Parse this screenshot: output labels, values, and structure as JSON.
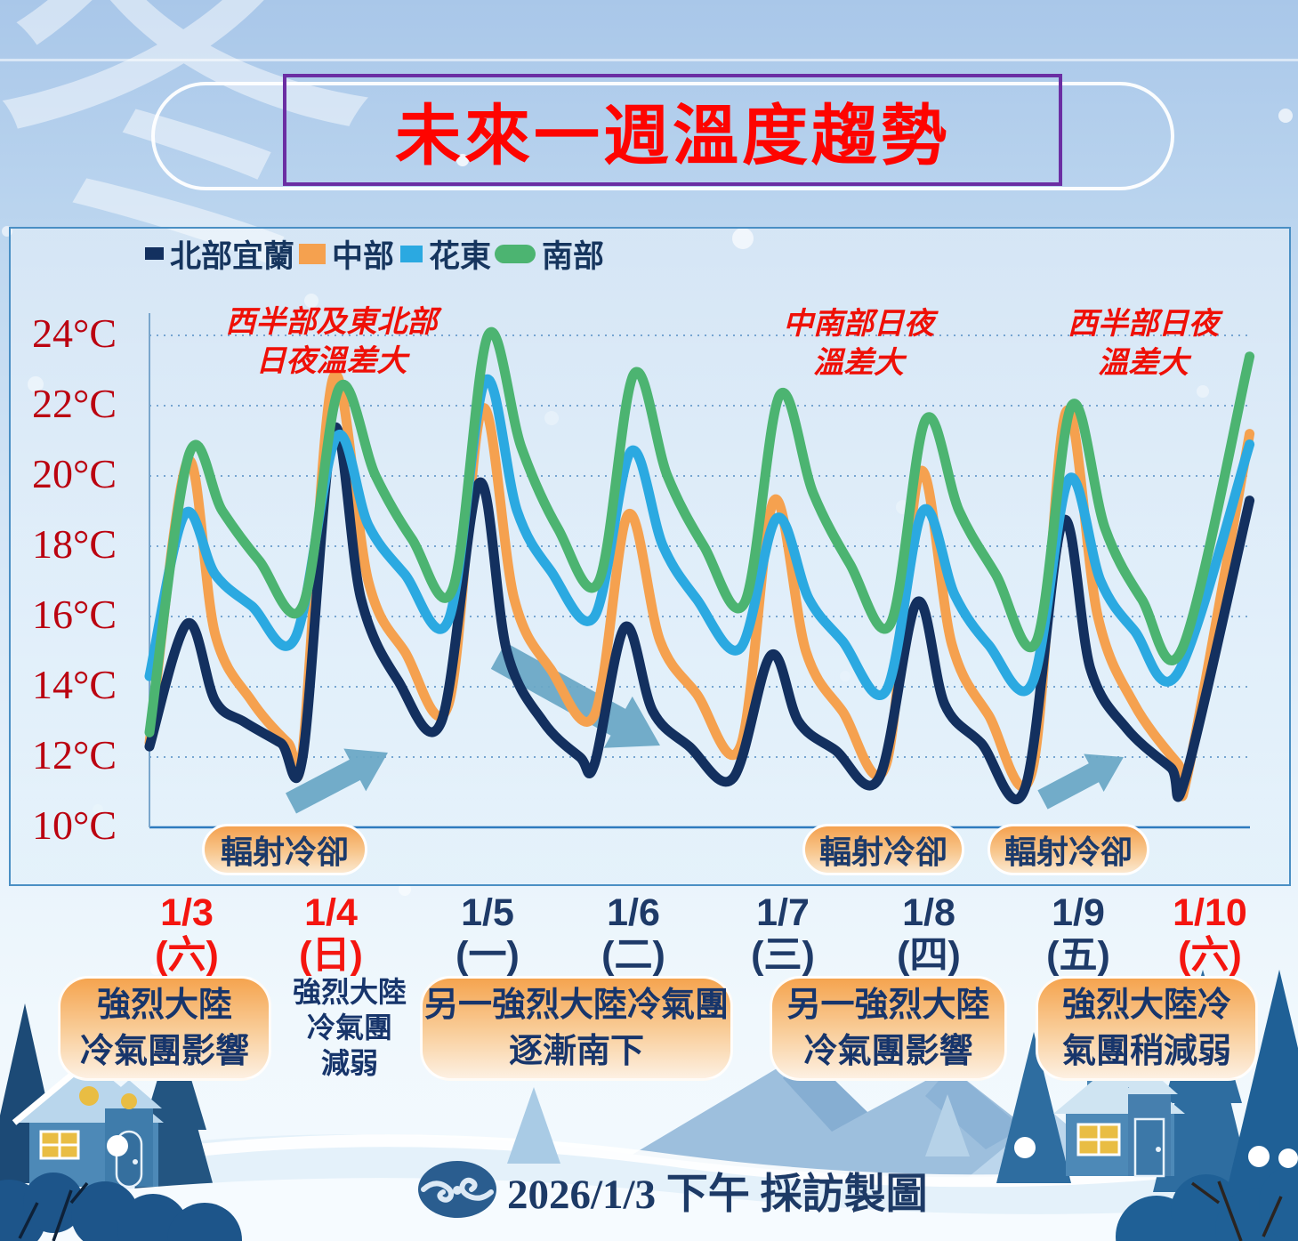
{
  "title": {
    "text": "未來一週溫度趨勢"
  },
  "watermark": "冬",
  "legend": [
    {
      "label": "北部宜蘭",
      "color": "#13305f",
      "shape": "rect"
    },
    {
      "label": "中部",
      "color": "#f5a14f",
      "shape": "rect"
    },
    {
      "label": "花東",
      "color": "#2ba9e1",
      "shape": "rect"
    },
    {
      "label": "南部",
      "color": "#4cb471",
      "shape": "pill"
    }
  ],
  "chart_data": {
    "type": "line",
    "title": "未來一週溫度趨勢",
    "ylabel": "°C",
    "ylim": [
      10,
      24
    ],
    "yticks": [
      "24°C",
      "22°C",
      "20°C",
      "18°C",
      "16°C",
      "14°C",
      "12°C",
      "10°C"
    ],
    "x_days": [
      "1/3",
      "1/4",
      "1/5",
      "1/6",
      "1/7",
      "1/8",
      "1/9",
      "1/10"
    ],
    "grid": "dotted horizontal gridlines every 2°C",
    "legend_position": "top-left",
    "units": {
      "t": "days since 1/3 (daily peak ≈ d+0.27, nightly low ≈ d+1.05)",
      "value": "°C (estimated)"
    },
    "series": [
      {
        "name": "北部宜蘭",
        "color": "#13305f",
        "points": [
          [
            0.0,
            12.3
          ],
          [
            0.26,
            15.8
          ],
          [
            0.45,
            13.6
          ],
          [
            0.65,
            13.0
          ],
          [
            0.9,
            12.4
          ],
          [
            1.05,
            12.0
          ],
          [
            1.26,
            21.3
          ],
          [
            1.45,
            16.5
          ],
          [
            1.7,
            14.2
          ],
          [
            2.0,
            13.0
          ],
          [
            2.26,
            19.8
          ],
          [
            2.45,
            15.0
          ],
          [
            2.7,
            13.0
          ],
          [
            2.95,
            12.0
          ],
          [
            3.05,
            11.8
          ],
          [
            3.26,
            15.7
          ],
          [
            3.45,
            13.3
          ],
          [
            3.7,
            12.3
          ],
          [
            4.0,
            11.4
          ],
          [
            4.26,
            14.9
          ],
          [
            4.45,
            13.0
          ],
          [
            4.7,
            12.2
          ],
          [
            5.0,
            11.4
          ],
          [
            5.26,
            16.4
          ],
          [
            5.45,
            13.5
          ],
          [
            5.7,
            12.4
          ],
          [
            6.0,
            11.1
          ],
          [
            6.26,
            18.7
          ],
          [
            6.45,
            14.5
          ],
          [
            6.7,
            12.8
          ],
          [
            7.0,
            11.7
          ],
          [
            7.1,
            11.4
          ],
          [
            7.54,
            19.3
          ]
        ]
      },
      {
        "name": "中部",
        "color": "#f5a14f",
        "points": [
          [
            0.0,
            12.4
          ],
          [
            0.26,
            20.4
          ],
          [
            0.45,
            15.5
          ],
          [
            0.7,
            13.6
          ],
          [
            0.95,
            12.4
          ],
          [
            1.05,
            12.2
          ],
          [
            1.26,
            22.8
          ],
          [
            1.5,
            17.0
          ],
          [
            1.75,
            15.0
          ],
          [
            2.05,
            13.5
          ],
          [
            2.28,
            21.9
          ],
          [
            2.5,
            16.5
          ],
          [
            2.75,
            14.5
          ],
          [
            3.05,
            13.2
          ],
          [
            3.28,
            18.9
          ],
          [
            3.5,
            15.3
          ],
          [
            3.75,
            13.8
          ],
          [
            4.05,
            12.3
          ],
          [
            4.28,
            19.3
          ],
          [
            4.5,
            15.0
          ],
          [
            4.75,
            13.3
          ],
          [
            5.05,
            11.8
          ],
          [
            5.28,
            20.1
          ],
          [
            5.5,
            15.2
          ],
          [
            5.75,
            13.2
          ],
          [
            6.05,
            11.6
          ],
          [
            6.28,
            21.8
          ],
          [
            6.5,
            16.0
          ],
          [
            6.75,
            13.5
          ],
          [
            7.05,
            11.8
          ],
          [
            7.12,
            11.6
          ],
          [
            7.54,
            21.2
          ]
        ]
      },
      {
        "name": "花東",
        "color": "#2ba9e1",
        "points": [
          [
            0.0,
            14.3
          ],
          [
            0.24,
            18.9
          ],
          [
            0.45,
            17.2
          ],
          [
            0.7,
            16.3
          ],
          [
            1.0,
            15.4
          ],
          [
            1.28,
            21.1
          ],
          [
            1.5,
            18.6
          ],
          [
            1.75,
            17.2
          ],
          [
            2.05,
            15.9
          ],
          [
            2.3,
            22.7
          ],
          [
            2.52,
            19.0
          ],
          [
            2.75,
            17.3
          ],
          [
            3.05,
            16.0
          ],
          [
            3.3,
            20.7
          ],
          [
            3.52,
            18.0
          ],
          [
            3.75,
            16.5
          ],
          [
            4.05,
            15.1
          ],
          [
            4.3,
            18.8
          ],
          [
            4.52,
            16.5
          ],
          [
            4.75,
            15.3
          ],
          [
            5.05,
            13.9
          ],
          [
            5.3,
            19.0
          ],
          [
            5.52,
            16.6
          ],
          [
            5.75,
            15.2
          ],
          [
            6.05,
            14.1
          ],
          [
            6.3,
            19.9
          ],
          [
            6.52,
            17.0
          ],
          [
            6.75,
            15.6
          ],
          [
            7.05,
            14.4
          ],
          [
            7.54,
            20.9
          ]
        ]
      },
      {
        "name": "南部",
        "color": "#4cb471",
        "points": [
          [
            0.0,
            12.7
          ],
          [
            0.27,
            20.6
          ],
          [
            0.5,
            19.0
          ],
          [
            0.75,
            17.6
          ],
          [
            1.05,
            16.3
          ],
          [
            1.3,
            22.5
          ],
          [
            1.55,
            20.0
          ],
          [
            1.8,
            18.2
          ],
          [
            2.08,
            16.8
          ],
          [
            2.32,
            24.0
          ],
          [
            2.55,
            20.8
          ],
          [
            2.8,
            18.5
          ],
          [
            3.08,
            17.0
          ],
          [
            3.32,
            22.9
          ],
          [
            3.55,
            20.0
          ],
          [
            3.8,
            18.0
          ],
          [
            4.08,
            16.4
          ],
          [
            4.32,
            22.3
          ],
          [
            4.55,
            19.5
          ],
          [
            4.8,
            17.5
          ],
          [
            5.08,
            15.8
          ],
          [
            5.32,
            21.6
          ],
          [
            5.55,
            19.0
          ],
          [
            5.8,
            17.2
          ],
          [
            6.08,
            15.3
          ],
          [
            6.32,
            22.0
          ],
          [
            6.55,
            18.5
          ],
          [
            6.8,
            16.5
          ],
          [
            7.08,
            15.1
          ],
          [
            7.54,
            23.4
          ]
        ]
      }
    ]
  },
  "annotations": {
    "chart_notes": [
      {
        "line1": "西半部及東北部",
        "line2": "日夜溫差大"
      },
      {
        "line1": "中南部日夜",
        "line2": "溫差大"
      },
      {
        "line1": "西半部日夜",
        "line2": "溫差大"
      }
    ],
    "cooling_labels": [
      "輻射冷卻",
      "輻射冷卻",
      "輻射冷卻"
    ]
  },
  "dates": [
    {
      "date": "1/3",
      "weekday": "(六)",
      "weekend": true
    },
    {
      "date": "1/4",
      "weekday": "(日)",
      "weekend": true
    },
    {
      "date": "1/5",
      "weekday": "(一)",
      "weekend": false
    },
    {
      "date": "1/6",
      "weekday": "(二)",
      "weekend": false
    },
    {
      "date": "1/7",
      "weekday": "(三)",
      "weekend": false
    },
    {
      "date": "1/8",
      "weekday": "(四)",
      "weekend": false
    },
    {
      "date": "1/9",
      "weekday": "(五)",
      "weekend": false
    },
    {
      "date": "1/10",
      "weekday": "(六)",
      "weekend": true
    }
  ],
  "bottom_notes": [
    {
      "boxed": true,
      "line1": "強烈大陸",
      "line2": "冷氣團影響"
    },
    {
      "boxed": false,
      "line1": "強烈大陸",
      "line2": "冷氣團",
      "line3": "減弱"
    },
    {
      "boxed": true,
      "line1": "另一強烈大陸冷氣團",
      "line2": "逐漸南下"
    },
    {
      "boxed": true,
      "line1": "另一強烈大陸",
      "line2": "冷氣團影響"
    },
    {
      "boxed": true,
      "line1": "強烈大陸冷",
      "line2": "氣團稍減弱"
    }
  ],
  "footer": {
    "caption": "2026/1/3 下午 採訪製圖"
  },
  "colors": {
    "title_red": "#fe0400",
    "title_border_purple": "#6b2ea3",
    "axis_label_red": "#bb0310",
    "annotation_red": "#ef1007",
    "text_navy": "#17356b",
    "date_red": "#f4150f",
    "arrow_teal": "#69a7c5",
    "panel_border": "#4a8fc4",
    "note_box_orange": "#f5a44f"
  }
}
